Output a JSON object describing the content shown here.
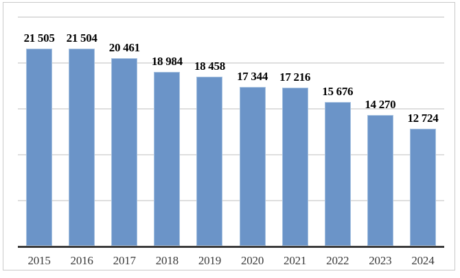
{
  "figure": {
    "background": "#ffffff",
    "border_color": "#c9c9c9"
  },
  "chart_data": {
    "type": "bar",
    "title": "",
    "xlabel": "",
    "ylabel": "",
    "categories": [
      "2015",
      "2016",
      "2017",
      "2018",
      "2019",
      "2020",
      "2021",
      "2022",
      "2023",
      "2024"
    ],
    "values": [
      21505,
      21504,
      20461,
      18984,
      18458,
      17344,
      17216,
      15676,
      14270,
      12724
    ],
    "display_values": [
      "21 505",
      "21 504",
      "20 461",
      "18 984",
      "18 458",
      "17 344",
      "17 216",
      "15 676",
      "14 270",
      "12 724"
    ],
    "ylim": [
      0,
      25000
    ],
    "gridline_step": 5000,
    "grid": true,
    "legend": "none",
    "y_axis_tick_labels_visible": false,
    "bar_color": "#6b94c8",
    "bar_border_color": "#a6c1e0",
    "gridline_color": "#dedede",
    "axis_line_color": "#3b3b3b",
    "value_label_color": "#000000",
    "category_label_color": "#3a3a3a"
  }
}
